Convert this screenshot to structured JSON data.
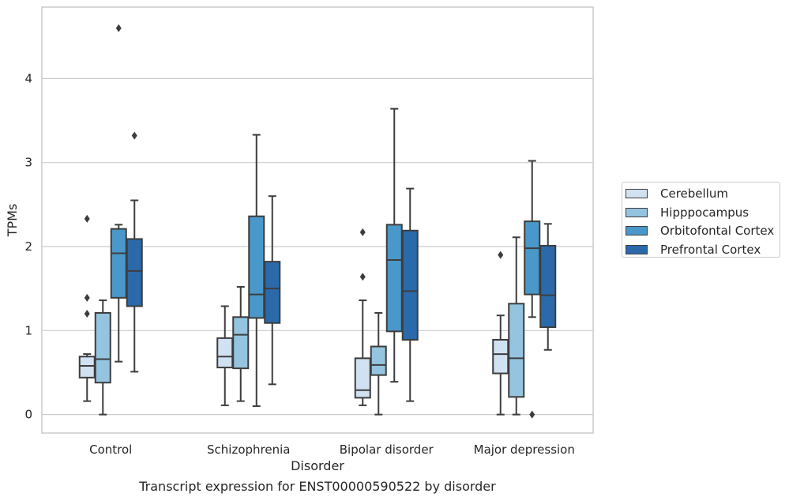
{
  "chart_data": {
    "type": "boxplot",
    "xlabel": "Disorder",
    "ylabel": "TPMs",
    "caption": "Transcript expression for ENST00000590522 by disorder",
    "ylim": [
      -0.22,
      4.85
    ],
    "yticks": [
      0,
      1,
      2,
      3,
      4
    ],
    "grid": "horizontal",
    "legend_position": "right",
    "categories": [
      "Control",
      "Schizophrenia",
      "Bipolar disorder",
      "Major depression"
    ],
    "series": [
      {
        "name": "Cerebellum",
        "color": "#d0e1f2",
        "boxes": [
          {
            "whisker_low": 0.16,
            "q1": 0.44,
            "median": 0.58,
            "q3": 0.69,
            "whisker_high": 0.72,
            "outliers": [
              2.33,
              1.39,
              1.2
            ]
          },
          {
            "whisker_low": 0.11,
            "q1": 0.56,
            "median": 0.69,
            "q3": 0.91,
            "whisker_high": 1.29,
            "outliers": []
          },
          {
            "whisker_low": 0.11,
            "q1": 0.2,
            "median": 0.29,
            "q3": 0.67,
            "whisker_high": 1.36,
            "outliers": [
              2.17,
              1.64
            ]
          },
          {
            "whisker_low": 0.0,
            "q1": 0.49,
            "median": 0.72,
            "q3": 0.89,
            "whisker_high": 1.18,
            "outliers": [
              1.9
            ]
          }
        ]
      },
      {
        "name": "Hipppocampus",
        "color": "#94c4df",
        "boxes": [
          {
            "whisker_low": 0.0,
            "q1": 0.38,
            "median": 0.66,
            "q3": 1.21,
            "whisker_high": 1.36,
            "outliers": []
          },
          {
            "whisker_low": 0.16,
            "q1": 0.55,
            "median": 0.95,
            "q3": 1.16,
            "whisker_high": 1.52,
            "outliers": []
          },
          {
            "whisker_low": 0.0,
            "q1": 0.47,
            "median": 0.59,
            "q3": 0.81,
            "whisker_high": 1.21,
            "outliers": []
          },
          {
            "whisker_low": 0.0,
            "q1": 0.21,
            "median": 0.67,
            "q3": 1.32,
            "whisker_high": 2.11,
            "outliers": []
          }
        ]
      },
      {
        "name": "Orbitofontal Cortex",
        "color": "#4a98c9",
        "boxes": [
          {
            "whisker_low": 0.63,
            "q1": 1.39,
            "median": 1.92,
            "q3": 2.21,
            "whisker_high": 2.26,
            "outliers": [
              4.6
            ]
          },
          {
            "whisker_low": 0.1,
            "q1": 1.15,
            "median": 1.43,
            "q3": 2.36,
            "whisker_high": 3.33,
            "outliers": []
          },
          {
            "whisker_low": 0.39,
            "q1": 0.99,
            "median": 1.84,
            "q3": 2.26,
            "whisker_high": 3.64,
            "outliers": []
          },
          {
            "whisker_low": 1.16,
            "q1": 1.43,
            "median": 1.98,
            "q3": 2.3,
            "whisker_high": 3.02,
            "outliers": [
              0.0
            ]
          }
        ]
      },
      {
        "name": "Prefrontal Cortex",
        "color": "#2a6aab",
        "boxes": [
          {
            "whisker_low": 0.51,
            "q1": 1.29,
            "median": 1.71,
            "q3": 2.09,
            "whisker_high": 2.55,
            "outliers": [
              3.32
            ]
          },
          {
            "whisker_low": 0.36,
            "q1": 1.09,
            "median": 1.5,
            "q3": 1.82,
            "whisker_high": 2.6,
            "outliers": []
          },
          {
            "whisker_low": 0.16,
            "q1": 0.89,
            "median": 1.47,
            "q3": 2.19,
            "whisker_high": 2.69,
            "outliers": []
          },
          {
            "whisker_low": 0.77,
            "q1": 1.04,
            "median": 1.42,
            "q3": 2.01,
            "whisker_high": 2.27,
            "outliers": []
          }
        ]
      }
    ]
  }
}
